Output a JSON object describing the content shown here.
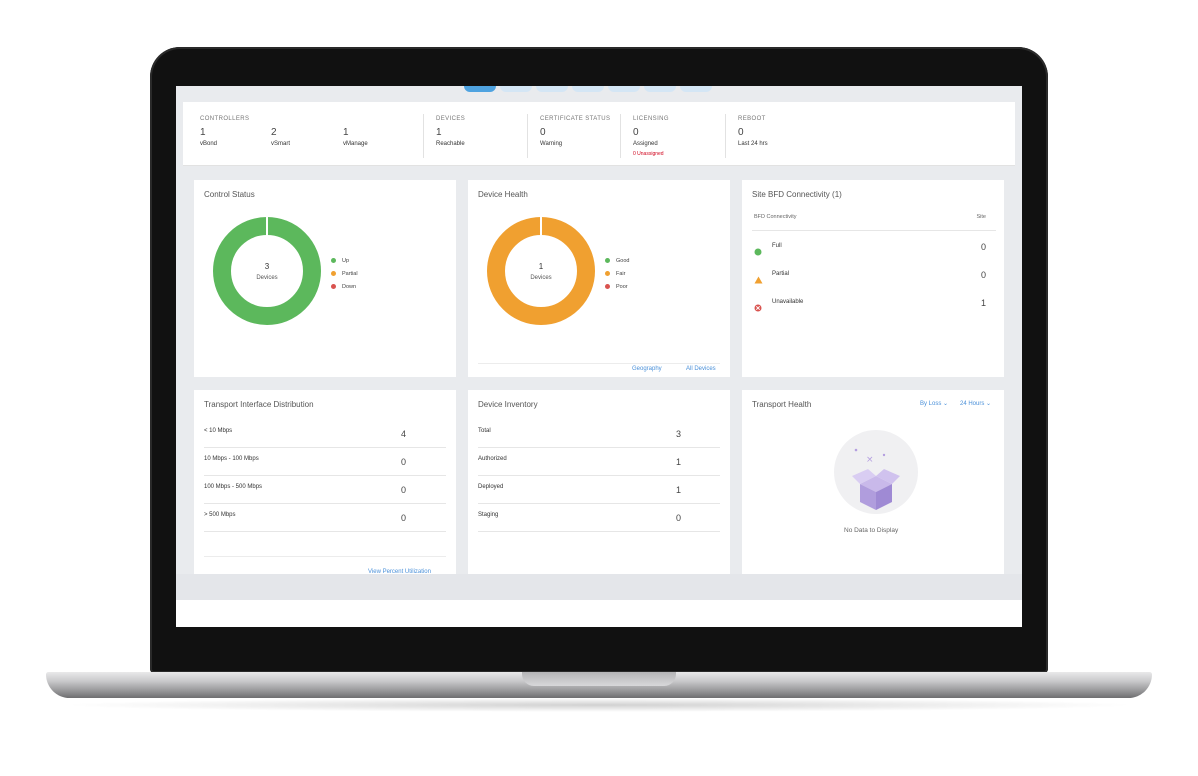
{
  "summary": {
    "controllers": {
      "label": "CONTROLLERS",
      "items": [
        {
          "count": "1",
          "name": "vBond"
        },
        {
          "count": "2",
          "name": "vSmart"
        },
        {
          "count": "1",
          "name": "vManage"
        }
      ]
    },
    "devices": {
      "label": "DEVICES",
      "count": "1",
      "sub": "Reachable"
    },
    "certificate": {
      "label": "CERTIFICATE STATUS",
      "count": "0",
      "sub": "Warning"
    },
    "licensing": {
      "label": "LICENSING",
      "count": "0",
      "sub": "Assigned",
      "warn": "0 Unassigned"
    },
    "reboot": {
      "label": "REBOOT",
      "count": "0",
      "sub": "Last 24 hrs"
    }
  },
  "control_status": {
    "title": "Control Status",
    "center_value": "3",
    "center_label": "Devices",
    "legend": [
      {
        "label": "Up",
        "color": "#5cb85c"
      },
      {
        "label": "Partial",
        "color": "#f0a030"
      },
      {
        "label": "Down",
        "color": "#d9534f"
      }
    ],
    "ring_color": "#5cb85c"
  },
  "device_health": {
    "title": "Device Health",
    "center_value": "1",
    "center_label": "Devices",
    "legend": [
      {
        "label": "Good",
        "color": "#5cb85c"
      },
      {
        "label": "Fair",
        "color": "#f0a030"
      },
      {
        "label": "Poor",
        "color": "#d9534f"
      }
    ],
    "ring_color": "#f0a030",
    "links": {
      "geography": "Geography",
      "all_devices": "All Devices"
    }
  },
  "bfd": {
    "title": "Site BFD Connectivity (1)",
    "col1": "BFD Connectivity",
    "col2": "Site",
    "rows": [
      {
        "label": "Full",
        "value": "0",
        "icon": "full-icon"
      },
      {
        "label": "Partial",
        "value": "0",
        "icon": "partial-icon"
      },
      {
        "label": "Unavailable",
        "value": "1",
        "icon": "unavailable-icon"
      }
    ]
  },
  "transport_interface": {
    "title": "Transport Interface Distribution",
    "rows": [
      {
        "label": "< 10 Mbps",
        "value": "4"
      },
      {
        "label": "10 Mbps - 100 Mbps",
        "value": "0"
      },
      {
        "label": "100 Mbps - 500 Mbps",
        "value": "0"
      },
      {
        "label": "> 500 Mbps",
        "value": "0"
      }
    ],
    "link": "View Percent Utilization"
  },
  "device_inventory": {
    "title": "Device Inventory",
    "rows": [
      {
        "label": "Total",
        "value": "3"
      },
      {
        "label": "Authorized",
        "value": "1"
      },
      {
        "label": "Deployed",
        "value": "1"
      },
      {
        "label": "Staging",
        "value": "0"
      }
    ]
  },
  "transport_health": {
    "title": "Transport Health",
    "filter1": "By Loss",
    "filter2": "24 Hours",
    "empty": "No Data to Display"
  }
}
